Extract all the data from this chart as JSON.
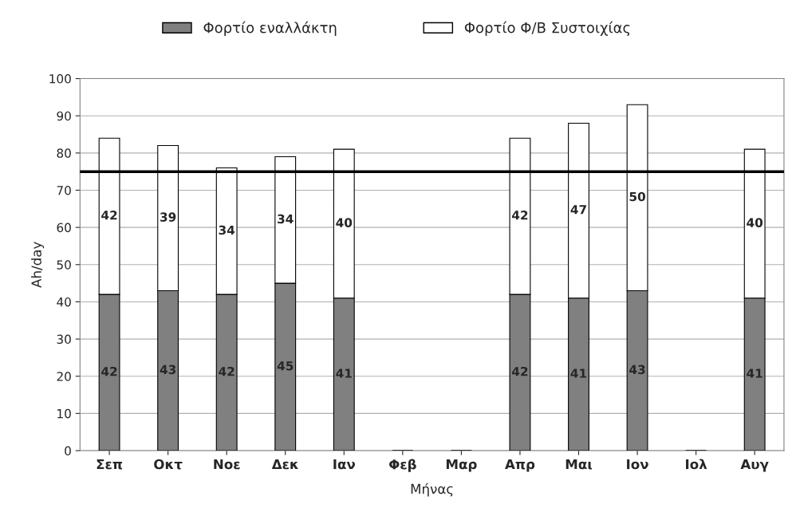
{
  "chart_data": {
    "type": "bar",
    "xlabel": "Μήνας",
    "ylabel": "Ah/day",
    "categories": [
      "Σεπ",
      "Οκτ",
      "Νοε",
      "Δεκ",
      "Ιαν",
      "Φεβ",
      "Μαρ",
      "Απρ",
      "Μαι",
      "Ιον",
      "Ιολ",
      "Αυγ"
    ],
    "stacked": true,
    "series": [
      {
        "name": "Φορτίο εναλλάκτη",
        "color": "#808080",
        "values": [
          42,
          43,
          42,
          45,
          41,
          null,
          null,
          42,
          41,
          43,
          null,
          41
        ]
      },
      {
        "name": "Φορτίο Φ/Β Συστοιχίας",
        "color": "#ffffff",
        "values": [
          42,
          39,
          34,
          34,
          40,
          null,
          null,
          42,
          47,
          50,
          null,
          40
        ]
      }
    ],
    "data_labels": true,
    "ylim": [
      0,
      100
    ],
    "yticks": [
      0,
      10,
      20,
      30,
      40,
      50,
      60,
      70,
      80,
      90,
      100
    ],
    "grid": "y",
    "legend": "top",
    "ref_lines": [
      {
        "axis": "y",
        "value": 75,
        "color": "#000000"
      }
    ]
  }
}
